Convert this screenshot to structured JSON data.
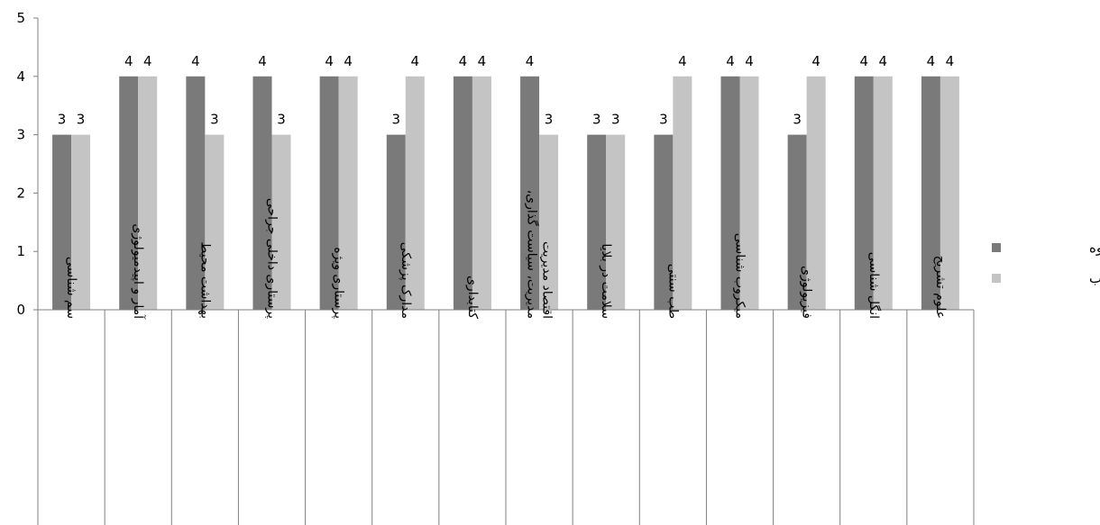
{
  "chart_data": {
    "type": "bar",
    "categories": [
      "سم شناسی",
      "آمار و اپیدمیولوژی",
      "بهداشت محیط",
      "پرستاری داخلی جراحی",
      "پرستاری ویژه",
      "مدارک پزشکی",
      "کتابداری",
      "مدیریت، سیاست گذاری، اقتصاد مدیریت",
      "سلامت در بلایا",
      "طب سنتی",
      "میکروب شناسی",
      "فیزیولوژی",
      "انگل شناسی",
      "علوم تشریح"
    ],
    "series": [
      {
        "name": "جلسات گروه",
        "color": "#7a7a7a",
        "values": [
          3,
          4,
          4,
          4,
          4,
          3,
          4,
          4,
          3,
          3,
          4,
          3,
          4,
          4
        ]
      },
      {
        "name": "ژورنال کلاب",
        "color": "#c4c4c4",
        "values": [
          3,
          4,
          3,
          3,
          4,
          4,
          4,
          3,
          3,
          4,
          4,
          4,
          4,
          4
        ]
      }
    ],
    "ylim": [
      0,
      5
    ],
    "yticks": [
      "0",
      "1",
      "2",
      "3",
      "4",
      "5"
    ],
    "grid": false,
    "data_labels": true,
    "legend_position": "right",
    "title": "",
    "xlabel": "",
    "ylabel": ""
  }
}
